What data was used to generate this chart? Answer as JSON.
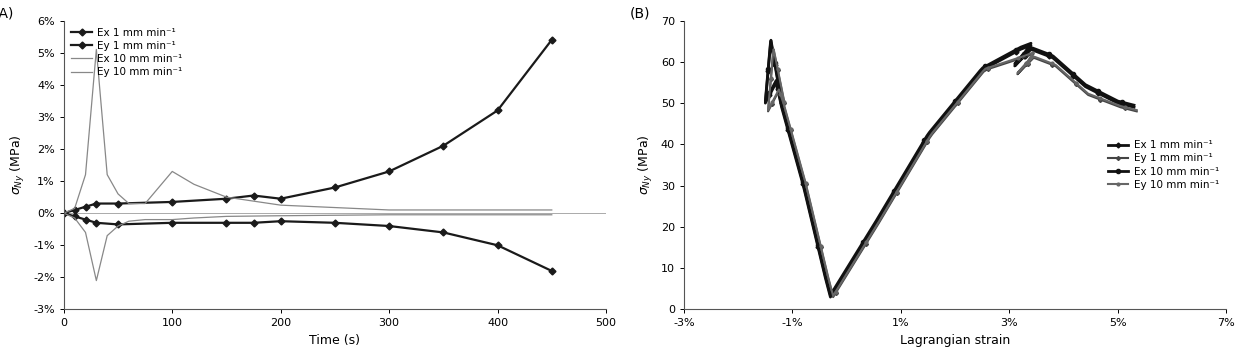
{
  "panel_A": {
    "label": "(A)",
    "xlabel": "Time (s)",
    "ylabel": "$\\sigma_{Ny}$ (MPa)",
    "xlim": [
      0,
      500
    ],
    "ylim": [
      -3,
      6
    ],
    "yticks": [
      -3,
      -2,
      -1,
      0,
      1,
      2,
      3,
      4,
      5,
      6
    ],
    "ytick_labels": [
      "-3%",
      "-2%",
      "-1%",
      "0%",
      "1%",
      "2%",
      "3%",
      "4%",
      "5%",
      "6%"
    ],
    "xticks": [
      0,
      100,
      200,
      300,
      400,
      500
    ],
    "legend_entries": [
      "Ex 1 mm min⁻¹",
      "Ey 1 mm min⁻¹",
      "Ex 10 mm min⁻¹",
      "Ey 10 mm min⁻¹"
    ],
    "series": {
      "Ex_1": {
        "x": [
          0,
          10,
          20,
          30,
          50,
          100,
          150,
          175,
          200,
          250,
          300,
          350,
          400,
          450
        ],
        "y": [
          0,
          0.1,
          0.2,
          0.3,
          0.3,
          0.35,
          0.45,
          0.55,
          0.45,
          0.8,
          1.3,
          2.1,
          3.2,
          5.4
        ],
        "color": "#1a1a1a",
        "linewidth": 1.6,
        "marker": "D",
        "markersize": 3.5,
        "linestyle": "-"
      },
      "Ey_1": {
        "x": [
          0,
          10,
          20,
          30,
          50,
          100,
          150,
          175,
          200,
          250,
          300,
          350,
          400,
          450
        ],
        "y": [
          0,
          -0.1,
          -0.2,
          -0.3,
          -0.35,
          -0.3,
          -0.3,
          -0.3,
          -0.25,
          -0.3,
          -0.4,
          -0.6,
          -1.0,
          -1.8
        ],
        "color": "#1a1a1a",
        "linewidth": 1.6,
        "marker": "D",
        "markersize": 3.5,
        "linestyle": "-"
      },
      "Ex_10": {
        "x": [
          0,
          10,
          20,
          30,
          40,
          50,
          60,
          75,
          100,
          120,
          150,
          200,
          300,
          450
        ],
        "y": [
          0,
          0.15,
          1.2,
          5.1,
          1.2,
          0.6,
          0.3,
          0.3,
          1.3,
          0.9,
          0.5,
          0.25,
          0.1,
          0.1
        ],
        "color": "#888888",
        "linewidth": 0.9,
        "marker": null,
        "markersize": 0,
        "linestyle": "-"
      },
      "Ey_10": {
        "x": [
          0,
          10,
          20,
          30,
          40,
          50,
          60,
          75,
          100,
          120,
          150,
          200,
          300,
          450
        ],
        "y": [
          0,
          -0.15,
          -0.6,
          -2.1,
          -0.7,
          -0.4,
          -0.25,
          -0.2,
          -0.2,
          -0.15,
          -0.1,
          -0.08,
          -0.05,
          -0.05
        ],
        "color": "#888888",
        "linewidth": 0.9,
        "marker": null,
        "markersize": 0,
        "linestyle": "-"
      }
    }
  },
  "panel_B": {
    "label": "(B)",
    "xlabel": "Lagrangian strain",
    "ylabel": "$\\sigma_{Ny}$ (MPa)",
    "xlim": [
      -0.03,
      0.07
    ],
    "ylim": [
      0,
      70
    ],
    "yticks": [
      0,
      10,
      20,
      30,
      40,
      50,
      60,
      70
    ],
    "xticks": [
      -0.03,
      -0.01,
      0.01,
      0.03,
      0.05,
      0.07
    ],
    "xtick_labels": [
      "-3%",
      "-1%",
      "1%",
      "3%",
      "5%",
      "7%"
    ],
    "legend_entries": [
      "Ex 1 mm min⁻¹",
      "Ey 1 mm min⁻¹",
      "Ex 10 mm min⁻¹",
      "Ey 10 mm min⁻¹"
    ]
  },
  "figure_bg": "#ffffff",
  "axes_bg": "#ffffff",
  "label_fontsize": 9,
  "tick_fontsize": 8,
  "legend_fontsize": 7.5
}
